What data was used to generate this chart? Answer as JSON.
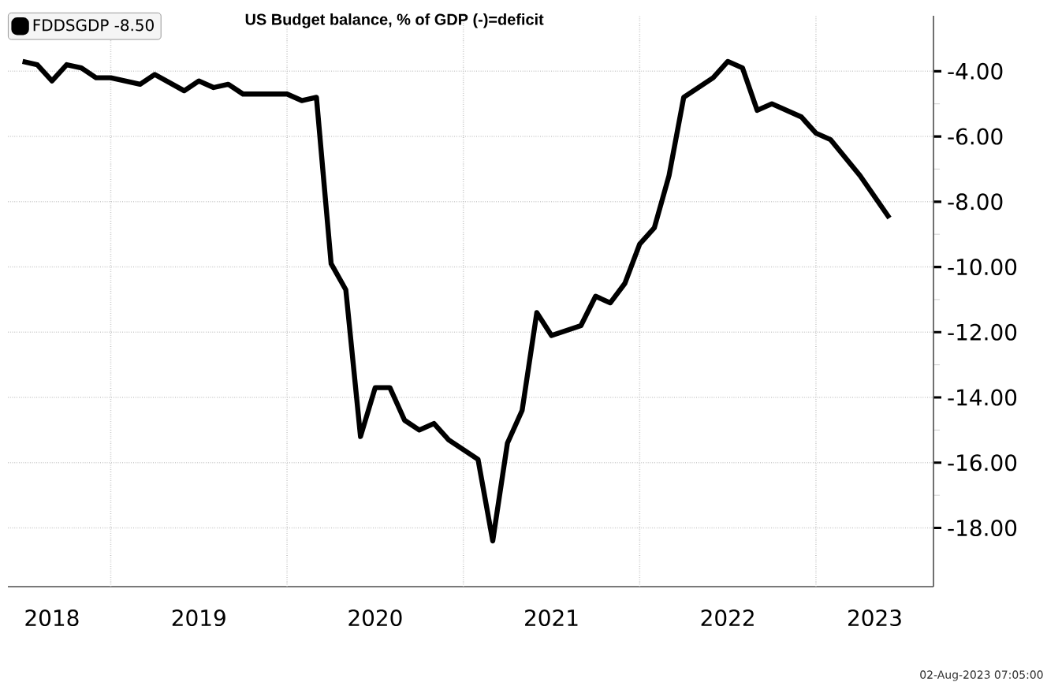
{
  "chart_data": {
    "type": "line",
    "title": "US Budget balance, % of GDP (-)=deficit",
    "annotations": [
      "02-Aug-2023 07:05:00"
    ],
    "x": [
      "2018-07",
      "2018-08",
      "2018-09",
      "2018-10",
      "2018-11",
      "2018-12",
      "2019-01",
      "2019-03",
      "2019-04",
      "2019-06",
      "2019-07",
      "2019-08",
      "2019-09",
      "2019-10",
      "2020-01",
      "2020-02",
      "2020-03",
      "2020-04",
      "2020-05",
      "2020-06",
      "2020-07",
      "2020-08",
      "2020-09",
      "2020-10",
      "2020-11",
      "2020-12",
      "2021-02",
      "2021-03",
      "2021-04",
      "2021-05",
      "2021-06",
      "2021-07",
      "2021-09",
      "2021-10",
      "2021-11",
      "2021-12",
      "2022-01",
      "2022-02",
      "2022-03",
      "2022-04",
      "2022-06",
      "2022-07",
      "2022-08",
      "2022-09",
      "2022-10",
      "2022-12",
      "2023-01",
      "2023-02",
      "2023-04",
      "2023-06"
    ],
    "series": [
      {
        "name": "FDDSGDP -8.50",
        "color": "#000000",
        "values": [
          -3.7,
          -3.8,
          -4.3,
          -3.8,
          -3.9,
          -4.2,
          -4.2,
          -4.4,
          -4.1,
          -4.6,
          -4.3,
          -4.5,
          -4.4,
          -4.7,
          -4.7,
          -4.9,
          -4.8,
          -9.9,
          -10.7,
          -15.2,
          -13.7,
          -13.7,
          -14.7,
          -15.0,
          -14.8,
          -15.3,
          -15.9,
          -18.4,
          -15.4,
          -14.4,
          -11.4,
          -12.1,
          -11.8,
          -10.9,
          -11.1,
          -10.5,
          -9.3,
          -8.8,
          -7.2,
          -4.8,
          -4.2,
          -3.7,
          -3.9,
          -5.2,
          -5.0,
          -5.4,
          -5.9,
          -6.1,
          -7.2,
          -8.5
        ]
      }
    ],
    "xlim": [
      "2018-06",
      "2023-09"
    ],
    "xticks": [
      {
        "value": "2019",
        "label": null
      },
      {
        "value": "2020",
        "label": null
      },
      {
        "value": "2021",
        "label": null
      },
      {
        "value": "2022",
        "label": null
      },
      {
        "value": "2023",
        "label": null
      },
      {
        "value": "2018-09",
        "label": "2018"
      },
      {
        "value": "2019-07",
        "label": "2019"
      },
      {
        "value": "2020-07",
        "label": "2020"
      },
      {
        "value": "2021-07",
        "label": "2021"
      },
      {
        "value": "2022-07",
        "label": "2022"
      },
      {
        "value": "2023-05",
        "label": "2023"
      }
    ],
    "ylim": [
      -19.8,
      -2.3
    ],
    "yticks": [
      {
        "value": -4,
        "label": "-4.00"
      },
      {
        "value": -6,
        "label": "-6.00"
      },
      {
        "value": -8,
        "label": "-8.00"
      },
      {
        "value": -10,
        "label": "-10.00"
      },
      {
        "value": -12,
        "label": "-12.00"
      },
      {
        "value": -14,
        "label": "-14.00"
      },
      {
        "value": -16,
        "label": "-16.00"
      },
      {
        "value": -18,
        "label": "-18.00"
      }
    ],
    "grid": true,
    "legend": "top left"
  }
}
